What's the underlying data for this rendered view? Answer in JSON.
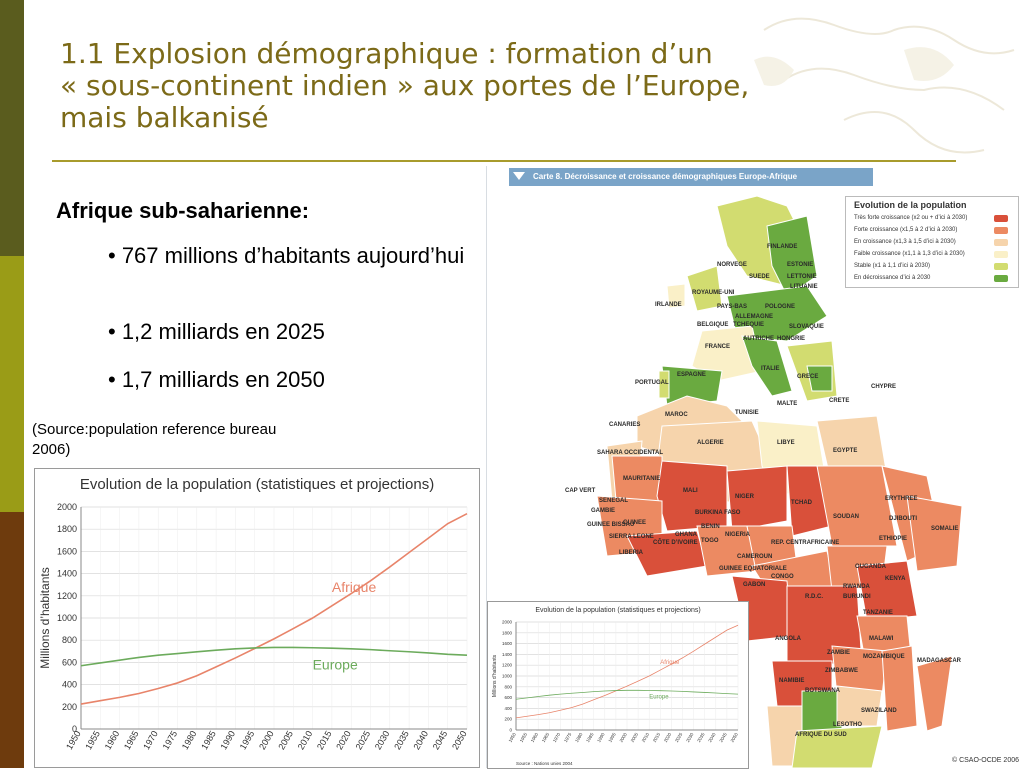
{
  "header": {
    "title_lines": [
      "1.1 Explosion démographique : formation d’un",
      "« sous-continent indien » aux portes de l’Europe,",
      "mais balkanisé"
    ]
  },
  "body": {
    "subtitle": "Afrique sub-saharienne:",
    "bullets": [
      "• 767 millions d’habitants aujourd’hui",
      "• 1,2 milliards en 2025",
      "• 1,7 milliards en 2050"
    ],
    "source": "(Source:population reference bureau 2006)"
  },
  "chart_data": [
    {
      "type": "line",
      "title": "Evolution de la population (statistiques et projections)",
      "ylabel": "Millions d’habitants",
      "xlabel": "",
      "x": [
        "1950",
        "1955",
        "1960",
        "1965",
        "1970",
        "1975",
        "1980",
        "1985",
        "1990",
        "1995",
        "2000",
        "2005",
        "2010",
        "2015",
        "2020",
        "2025",
        "2030",
        "2035",
        "2040",
        "2045",
        "2050"
      ],
      "ylim": [
        0,
        2000
      ],
      "yticks": [
        0,
        200,
        400,
        600,
        800,
        1000,
        1200,
        1400,
        1600,
        1800,
        2000
      ],
      "grid": true,
      "series": [
        {
          "name": "Afrique",
          "color": "#e8846a",
          "values": [
            225,
            255,
            285,
            320,
            365,
            415,
            480,
            560,
            640,
            725,
            812,
            905,
            1000,
            1110,
            1220,
            1335,
            1460,
            1590,
            1720,
            1850,
            1940
          ]
        },
        {
          "name": "Europe",
          "color": "#6cab5c",
          "values": [
            570,
            595,
            620,
            645,
            665,
            680,
            695,
            710,
            722,
            730,
            735,
            735,
            732,
            728,
            722,
            715,
            705,
            696,
            685,
            673,
            665
          ]
        }
      ]
    },
    {
      "type": "line",
      "title": "Evolution de la population (statistiques et projections)",
      "ylabel": "Millions d’habitants",
      "source": "Source : Nations unies 2004",
      "x": [
        "1950",
        "1955",
        "1960",
        "1965",
        "1970",
        "1975",
        "1980",
        "1985",
        "1990",
        "1995",
        "2000",
        "2005",
        "2010",
        "2015",
        "2020",
        "2025",
        "2030",
        "2035",
        "2040",
        "2045",
        "2050"
      ],
      "ylim": [
        0,
        2000
      ],
      "yticks": [
        0,
        200,
        400,
        600,
        800,
        1000,
        1200,
        1400,
        1600,
        1800,
        2000
      ],
      "series": [
        {
          "name": "Afrique",
          "color": "#e8846a",
          "values": [
            225,
            255,
            285,
            320,
            365,
            415,
            480,
            560,
            640,
            725,
            812,
            905,
            1000,
            1110,
            1220,
            1335,
            1460,
            1590,
            1720,
            1850,
            1940
          ]
        },
        {
          "name": "Europe",
          "color": "#6cab5c",
          "values": [
            570,
            595,
            620,
            645,
            665,
            680,
            695,
            710,
            722,
            730,
            735,
            735,
            732,
            728,
            722,
            715,
            705,
            696,
            685,
            673,
            665
          ]
        }
      ]
    }
  ],
  "map": {
    "title": "Carte 8. Décroissance et croissance démographiques Europe-Afrique",
    "credit": "© CSAO-OCDE 2006",
    "legend": {
      "title": "Evolution de la population",
      "items": [
        {
          "label": "Très forte croissance (x2 ou + d’ici à 2030)",
          "color": "#d9503a"
        },
        {
          "label": "Forte croissance (x1,5 à 2 d’ici à 2030)",
          "color": "#ec8a62"
        },
        {
          "label": "En croissance (x1,3 à 1,5 d’ici à 2030)",
          "color": "#f6d4ac"
        },
        {
          "label": "Faible croissance (x1,1 à 1,3 d’ici à 2030)",
          "color": "#faf0c8"
        },
        {
          "label": "Stable (x1 à 1,1 d’ici à 2030)",
          "color": "#d2dc70"
        },
        {
          "label": "En décroissance d’ici à 2030",
          "color": "#6aaa40"
        }
      ]
    },
    "countries": [
      "FINLANDE",
      "NORVEGE",
      "SUEDE",
      "ESTONIE",
      "LETTONIE",
      "LITUANIE",
      "ROYAUME-UNI",
      "IRLANDE",
      "PAYS-BAS",
      "POLOGNE",
      "BELGIQUE",
      "ALLEMAGNE",
      "TCHEQUIE",
      "SLOVAQUIE",
      "HONGRIE",
      "AUTRICHE",
      "FRANCE",
      "PORTUGAL",
      "ESPAGNE",
      "ITALIE",
      "GRECE",
      "CHYPRE",
      "MALTE",
      "CRETE",
      "MAROC",
      "TUNISIE",
      "CANARIES",
      "ALGERIE",
      "LIBYE",
      "EGYPTE",
      "SAHARA OCCIDENTAL",
      "MAURITANIE",
      "CAP VERT",
      "MALI",
      "NIGER",
      "SENEGAL",
      "GAMBIE",
      "GUINEE BISSAU",
      "BURKINA FASO",
      "GUINEE",
      "TCHAD",
      "SOUDAN",
      "ERYTHREE",
      "DJIBOUTI",
      "SIERRA LEONE",
      "LIBERIA",
      "GHANA",
      "CÔTE D’IVOIRE",
      "TOGO",
      "BENIN",
      "NIGERIA",
      "REP. CENTRAFRICAINE",
      "ETHIOPIE",
      "SOMALIE",
      "CAMEROUN",
      "GUINEE EQUATORIALE",
      "CONGO",
      "GABON",
      "OUGANDA",
      "KENYA",
      "RWANDA",
      "BURUNDI",
      "R.D.C.",
      "TANZANIE",
      "ANGOLA",
      "MALAWI",
      "ZAMBIE",
      "ZIMBABWE",
      "MOZAMBIQUE",
      "MADAGASCAR",
      "NAMIBIE",
      "BOTSWANA",
      "SWAZILAND",
      "LESOTHO",
      "AFRIQUE DU SUD"
    ]
  }
}
